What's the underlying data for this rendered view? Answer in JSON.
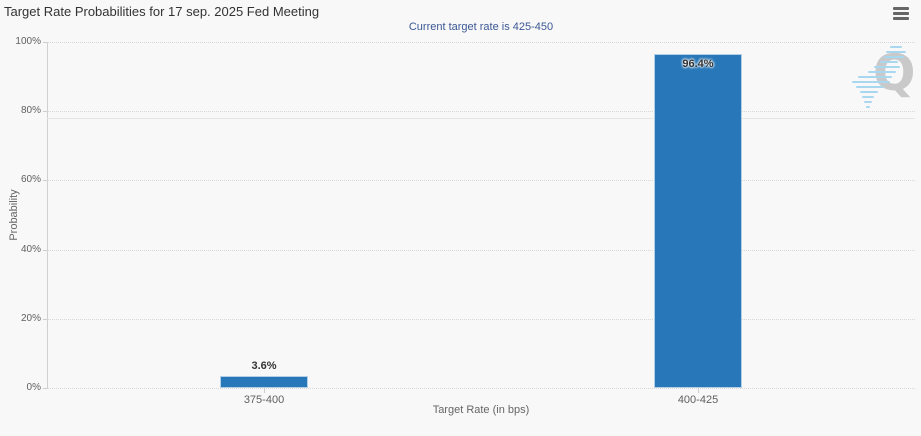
{
  "header": {
    "title": "Target Rate Probabilities for 17 sep. 2025 Fed Meeting",
    "subtitle": "Current target rate is 425-450"
  },
  "menu": {
    "icon": "hamburger-menu-icon"
  },
  "watermark": {
    "letter": "Q"
  },
  "colors": {
    "bar": "#2878b9",
    "subtitle_text": "#3a5795",
    "background": "#f8f8f8",
    "axis_text": "#606060",
    "gridline": "#d8d8d8",
    "watermark_gray": "#c9c9c9",
    "watermark_blue": "#a9d7ef"
  },
  "chart_data": {
    "type": "bar",
    "title": "Target Rate Probabilities for 17 sep. 2025 Fed Meeting",
    "subtitle": "Current target rate is 425-450",
    "categories": [
      "375-400",
      "400-425"
    ],
    "values": [
      3.6,
      96.4
    ],
    "value_labels": [
      "3.6%",
      "96.4%"
    ],
    "xlabel": "Target Rate (in bps)",
    "ylabel": "Probability",
    "ylim": [
      0,
      100
    ],
    "yticks": [
      "0%",
      "20%",
      "40%",
      "60%",
      "80%",
      "100%"
    ],
    "grid": "dotted-horizontal",
    "legend": "none"
  }
}
